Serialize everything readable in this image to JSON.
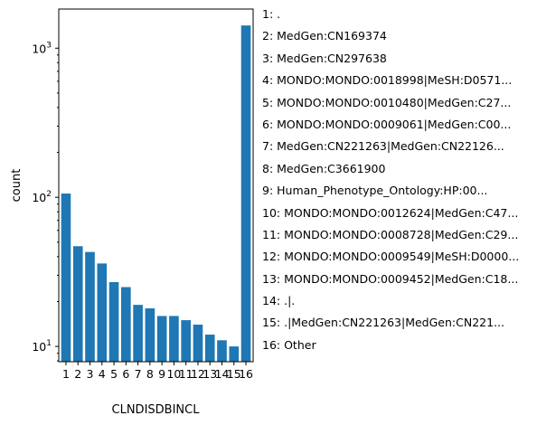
{
  "chart_data": {
    "type": "bar",
    "categories": [
      "1",
      "2",
      "3",
      "4",
      "5",
      "6",
      "7",
      "8",
      "9",
      "10",
      "11",
      "12",
      "13",
      "14",
      "15",
      "16"
    ],
    "values": [
      106,
      47,
      43,
      36,
      27,
      25,
      19,
      18,
      16,
      16,
      15,
      14,
      12,
      11,
      10,
      1420
    ],
    "xlabel": "CLNDISDBINCL",
    "ylabel": "count",
    "yscale": "log",
    "ylim": [
      7.9,
      1830
    ],
    "yticks": [
      {
        "base": "10",
        "exp": "1",
        "value": 10
      },
      {
        "base": "10",
        "exp": "2",
        "value": 100
      },
      {
        "base": "10",
        "exp": "3",
        "value": 1000
      }
    ],
    "bar_color": "#1f77b4",
    "grid": false,
    "legend_position": "right",
    "legend": [
      "1: .",
      "2: MedGen:CN169374",
      "3: MedGen:CN297638",
      "4: MONDO:MONDO:0018998|MeSH:D0571...",
      "5: MONDO:MONDO:0010480|MedGen:C27...",
      "6: MONDO:MONDO:0009061|MedGen:C00...",
      "7: MedGen:CN221263|MedGen:CN22126...",
      "8: MedGen:C3661900",
      "9: Human_Phenotype_Ontology:HP:00...",
      "10: MONDO:MONDO:0012624|MedGen:C47...",
      "11: MONDO:MONDO:0008728|MedGen:C29...",
      "12: MONDO:MONDO:0009549|MeSH:D0000...",
      "13: MONDO:MONDO:0009452|MedGen:C18...",
      "14: .|.",
      "15: .|MedGen:CN221263|MedGen:CN221...",
      "16: Other"
    ]
  }
}
